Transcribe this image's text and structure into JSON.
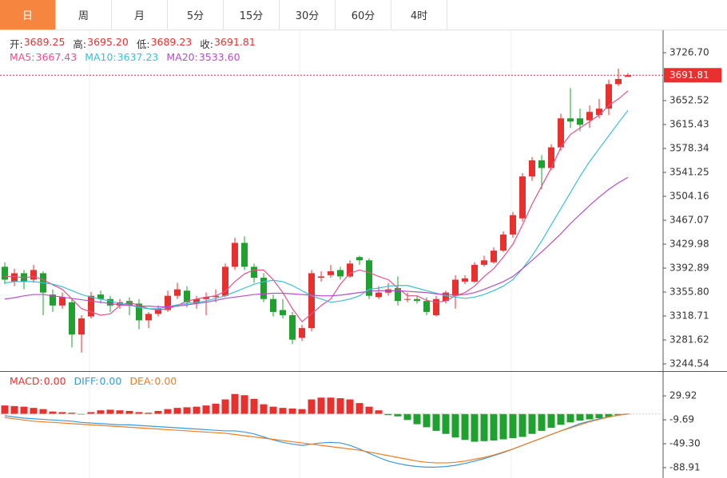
{
  "tabs": [
    "日",
    "周",
    "月",
    "5分",
    "15分",
    "30分",
    "60分",
    "4时"
  ],
  "active_tab": 0,
  "chart_data": [
    {
      "type": "candlestick",
      "up_color": "#e8312f",
      "down_color": "#1fa12f",
      "info": [
        {
          "label": "开:",
          "value": "3689.25"
        },
        {
          "label": "高:",
          "value": "3695.20"
        },
        {
          "label": "低:",
          "value": "3689.23"
        },
        {
          "label": "收:",
          "value": "3691.81"
        }
      ],
      "ylim": [
        3233.4,
        3758.9
      ],
      "yticks": [
        {
          "value": 3726.7,
          "label": "3726.70"
        },
        3652.52,
        3615.43,
        3578.34,
        3541.25,
        3504.16,
        3467.07,
        3429.98,
        3392.89,
        {
          "value": 3355.8,
          "label": "3355.80"
        },
        3318.71,
        3281.62,
        3244.54
      ],
      "open": [
        3395,
        3372,
        3385,
        3375,
        3385,
        3352,
        3335,
        3340,
        3290,
        3318,
        3352,
        3345,
        3335,
        3342,
        3338,
        3312,
        3322,
        3328,
        3350,
        3358,
        3338,
        3345,
        3348,
        3350,
        3395,
        3432,
        3395,
        3378,
        3345,
        3328,
        3320,
        3285,
        3300,
        3378,
        3382,
        3390,
        3380,
        3410,
        3405,
        3348,
        3355,
        3362,
        3345,
        3345,
        3342,
        3320,
        3342,
        3350,
        3372,
        3372,
        3398,
        3402,
        3420,
        3445,
        3470,
        3535,
        3560,
        3548,
        3580,
        3625,
        3625,
        3622,
        3630,
        3640,
        3678,
        3689.25
      ],
      "high": [
        3402,
        3392,
        3390,
        3398,
        3388,
        3360,
        3355,
        3345,
        3320,
        3356,
        3358,
        3350,
        3345,
        3348,
        3345,
        3325,
        3335,
        3358,
        3370,
        3365,
        3350,
        3355,
        3360,
        3400,
        3440,
        3442,
        3400,
        3385,
        3352,
        3345,
        3325,
        3305,
        3390,
        3388,
        3398,
        3395,
        3405,
        3412,
        3408,
        3365,
        3370,
        3380,
        3355,
        3350,
        3348,
        3350,
        3358,
        3382,
        3382,
        3402,
        3412,
        3425,
        3450,
        3480,
        3540,
        3565,
        3568,
        3585,
        3632,
        3672,
        3640,
        3645,
        3655,
        3685,
        3702,
        3695.2
      ],
      "low": [
        3368,
        3365,
        3360,
        3370,
        3320,
        3325,
        3330,
        3270,
        3262,
        3315,
        3338,
        3325,
        3330,
        3320,
        3298,
        3300,
        3318,
        3325,
        3345,
        3332,
        3330,
        3320,
        3340,
        3348,
        3390,
        3390,
        3370,
        3340,
        3318,
        3315,
        3275,
        3280,
        3295,
        3372,
        3378,
        3375,
        3378,
        3398,
        3345,
        3345,
        3350,
        3335,
        3340,
        3338,
        3320,
        3318,
        3338,
        3330,
        3368,
        3370,
        3395,
        3400,
        3418,
        3440,
        3465,
        3528,
        3515,
        3545,
        3575,
        3610,
        3605,
        3610,
        3625,
        3630,
        3675,
        3689.23
      ],
      "close": [
        3375,
        3385,
        3372,
        3390,
        3355,
        3335,
        3348,
        3290,
        3315,
        3350,
        3345,
        3335,
        3340,
        3335,
        3312,
        3322,
        3330,
        3350,
        3360,
        3340,
        3345,
        3348,
        3350,
        3395,
        3432,
        3395,
        3378,
        3345,
        3325,
        3320,
        3282,
        3300,
        3385,
        3380,
        3388,
        3380,
        3400,
        3405,
        3350,
        3355,
        3360,
        3342,
        3345,
        3342,
        3325,
        3345,
        3355,
        3375,
        3377,
        3398,
        3405,
        3420,
        3445,
        3475,
        3535,
        3560,
        3548,
        3580,
        3625,
        3620,
        3615,
        3635,
        3640,
        3678,
        3686,
        3691.81
      ],
      "series": [
        {
          "name": "MA5:",
          "value_label": "3667.43",
          "color": "#e8508a",
          "values": [
            3380,
            3380,
            3378,
            3380,
            3375,
            3367,
            3360,
            3345,
            3330,
            3325,
            3320,
            3322,
            3335,
            3340,
            3335,
            3330,
            3328,
            3330,
            3335,
            3342,
            3345,
            3348,
            3350,
            3357,
            3372,
            3384,
            3390,
            3390,
            3375,
            3355,
            3330,
            3310,
            3322,
            3335,
            3345,
            3368,
            3385,
            3390,
            3386,
            3380,
            3375,
            3362,
            3350,
            3350,
            3343,
            3340,
            3342,
            3350,
            3355,
            3365,
            3380,
            3392,
            3410,
            3430,
            3460,
            3492,
            3520,
            3548,
            3580,
            3600,
            3610,
            3620,
            3630,
            3645,
            3655,
            3667.43
          ]
        },
        {
          "name": "MA10:",
          "value_label": "3637.23",
          "color": "#3bbfd6",
          "values": [
            3370,
            3372,
            3372,
            3372,
            3370,
            3368,
            3364,
            3358,
            3352,
            3348,
            3345,
            3342,
            3338,
            3336,
            3332,
            3330,
            3330,
            3333,
            3336,
            3338,
            3340,
            3342,
            3346,
            3350,
            3356,
            3362,
            3368,
            3372,
            3374,
            3372,
            3366,
            3358,
            3350,
            3345,
            3340,
            3342,
            3345,
            3350,
            3360,
            3362,
            3365,
            3366,
            3366,
            3362,
            3358,
            3354,
            3350,
            3348,
            3346,
            3348,
            3352,
            3358,
            3365,
            3375,
            3392,
            3412,
            3435,
            3460,
            3485,
            3510,
            3535,
            3558,
            3578,
            3598,
            3618,
            3637.23
          ]
        },
        {
          "name": "MA20:",
          "value_label": "3533.60",
          "color": "#b44fc8",
          "values": [
            3345,
            3347,
            3350,
            3352,
            3352,
            3350,
            3348,
            3346,
            3344,
            3342,
            3340,
            3338,
            3336,
            3335,
            3334,
            3334,
            3333,
            3333,
            3334,
            3336,
            3338,
            3340,
            3343,
            3346,
            3348,
            3350,
            3352,
            3353,
            3354,
            3354,
            3353,
            3352,
            3351,
            3350,
            3350,
            3351,
            3353,
            3355,
            3357,
            3358,
            3358,
            3358,
            3357,
            3356,
            3355,
            3353,
            3352,
            3351,
            3352,
            3355,
            3360,
            3366,
            3372,
            3380,
            3392,
            3405,
            3418,
            3432,
            3446,
            3462,
            3476,
            3490,
            3503,
            3515,
            3525,
            3533.6
          ]
        }
      ]
    },
    {
      "type": "macd",
      "up_color": "#e8312f",
      "down_color": "#1fa12f",
      "ylim": [
        -106,
        68.3
      ],
      "yticks": [
        29.92,
        -9.69,
        {
          "value": -49.3,
          "label": "-49.30"
        },
        -88.91
      ],
      "series": [
        {
          "name": "MACD:",
          "value_label": "0.00",
          "color": "#e8312f",
          "values": [
            14,
            13,
            12,
            10,
            8,
            4,
            3,
            2,
            -1,
            3,
            6,
            7,
            6,
            5,
            3,
            2,
            5,
            8,
            10,
            11,
            12,
            14,
            17,
            24,
            33,
            31,
            25,
            16,
            12,
            10,
            9,
            8,
            24,
            27,
            27,
            26,
            24,
            18,
            12,
            6,
            -2,
            -4,
            -10,
            -17,
            -22,
            -28,
            -33,
            -39,
            -43,
            -46,
            -45,
            -44,
            -42,
            -40,
            -38,
            -33,
            -28,
            -23,
            -18,
            -14,
            -11,
            -9,
            -7,
            -5,
            -2,
            0
          ]
        },
        {
          "name": "DIFF:",
          "value_label": "0.00",
          "color": "#3a9ad9",
          "values": [
            -3,
            -5,
            -7,
            -8,
            -9,
            -10,
            -11,
            -12,
            -14,
            -15,
            -16,
            -17,
            -18,
            -18,
            -19,
            -20,
            -21,
            -22,
            -23,
            -24,
            -25,
            -26,
            -27,
            -28,
            -28,
            -30,
            -33,
            -38,
            -43,
            -47,
            -50,
            -52,
            -50,
            -48,
            -47,
            -48,
            -52,
            -58,
            -65,
            -72,
            -78,
            -82,
            -85,
            -87,
            -88,
            -88,
            -87,
            -85,
            -82,
            -78,
            -74,
            -69,
            -64,
            -58,
            -52,
            -46,
            -40,
            -34,
            -28,
            -22,
            -16,
            -12,
            -8,
            -5,
            -2,
            0
          ]
        },
        {
          "name": "DEA:",
          "value_label": "0.00",
          "color": "#ef7d22",
          "values": [
            -6,
            -8,
            -10,
            -12,
            -13,
            -14,
            -15,
            -16,
            -17,
            -18,
            -19,
            -20,
            -21,
            -22,
            -23,
            -24,
            -25,
            -26,
            -27,
            -28,
            -29,
            -30,
            -31,
            -32,
            -34,
            -36,
            -38,
            -40,
            -42,
            -44,
            -46,
            -48,
            -50,
            -52,
            -54,
            -56,
            -58,
            -60,
            -63,
            -66,
            -69,
            -72,
            -75,
            -78,
            -80,
            -81,
            -81,
            -80,
            -78,
            -75,
            -72,
            -68,
            -63,
            -58,
            -52,
            -46,
            -40,
            -34,
            -28,
            -23,
            -18,
            -13,
            -9,
            -5,
            -2,
            0
          ]
        }
      ]
    }
  ]
}
